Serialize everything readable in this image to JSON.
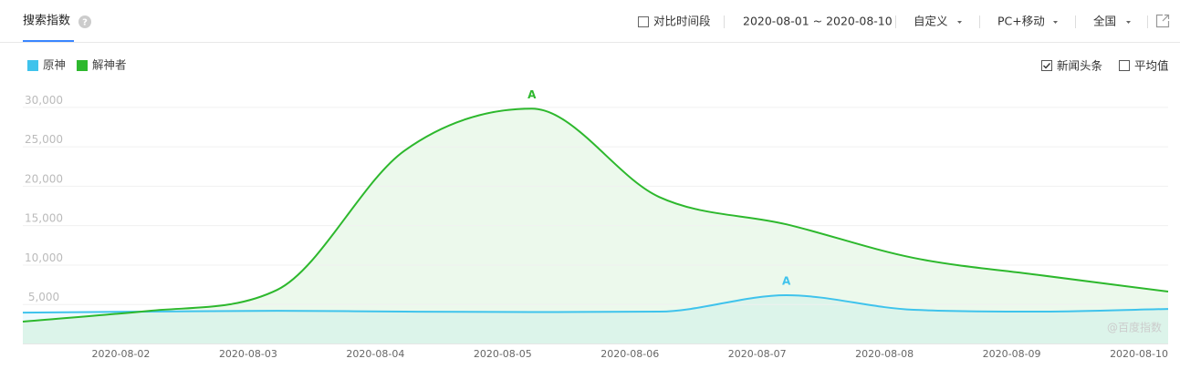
{
  "header": {
    "tab": "搜索指数",
    "compare": {
      "label": "对比时间段",
      "checked": false
    },
    "date_range": "2020-08-01 ~ 2020-08-10",
    "mode": "自定义",
    "device": "PC+移动",
    "region": "全国"
  },
  "options": [
    {
      "label": "新闻头条",
      "checked": true
    },
    {
      "label": "平均值",
      "checked": false
    }
  ],
  "watermark": "@百度指数",
  "chart_data": {
    "type": "line",
    "area": true,
    "grid": true,
    "categories": [
      null,
      "2020-08-02",
      "2020-08-03",
      "2020-08-04",
      "2020-08-05",
      "2020-08-06",
      "2020-08-07",
      "2020-08-08",
      "2020-08-09",
      "2020-08-10"
    ],
    "series": [
      {
        "name": "原神",
        "color": "#3fc3ec",
        "values": [
          3920,
          4040,
          4150,
          4040,
          3980,
          4040,
          6120,
          4270,
          4040,
          4380
        ]
      },
      {
        "name": "解神者",
        "color": "#2db82d",
        "values": [
          2770,
          4150,
          6810,
          24460,
          29770,
          18580,
          15110,
          10850,
          8650,
          6580
        ]
      }
    ],
    "ylim": [
      0,
      32000
    ],
    "yticks": [
      {
        "value": 5000,
        "label": "5,000"
      },
      {
        "value": 10000,
        "label": "10,000"
      },
      {
        "value": 15000,
        "label": "15,000"
      },
      {
        "value": 20000,
        "label": "20,000"
      },
      {
        "value": 25000,
        "label": "25,000"
      },
      {
        "value": 30000,
        "label": "30,000"
      }
    ],
    "annotations": [
      {
        "series": 1,
        "index": 4,
        "label": "A"
      },
      {
        "series": 0,
        "index": 6,
        "label": "A"
      }
    ]
  }
}
